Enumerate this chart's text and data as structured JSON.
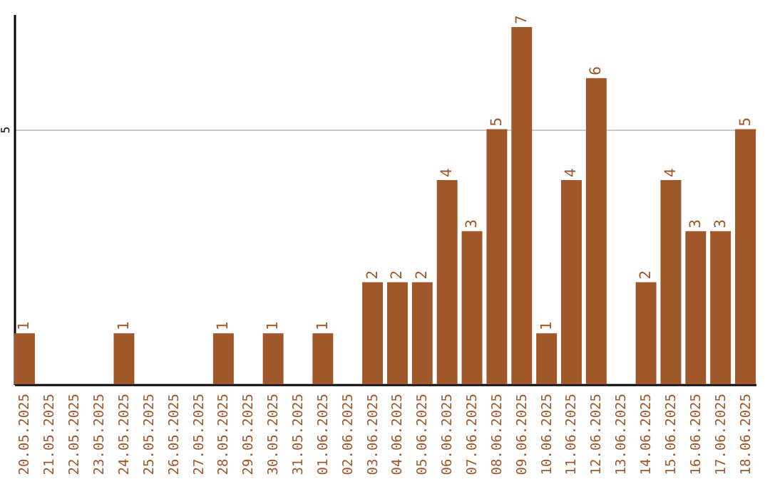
{
  "chart_data": {
    "type": "bar",
    "categories": [
      "20.05.2025",
      "21.05.2025",
      "22.05.2025",
      "23.05.2025",
      "24.05.2025",
      "25.05.2025",
      "26.05.2025",
      "27.05.2025",
      "28.05.2025",
      "29.05.2025",
      "30.05.2025",
      "31.05.2025",
      "01.06.2025",
      "02.06.2025",
      "03.06.2025",
      "04.06.2025",
      "05.06.2025",
      "06.06.2025",
      "07.06.2025",
      "08.06.2025",
      "09.06.2025",
      "10.06.2025",
      "11.06.2025",
      "12.06.2025",
      "13.06.2025",
      "14.06.2025",
      "15.06.2025",
      "16.06.2025",
      "17.06.2025",
      "18.06.2025"
    ],
    "values": [
      1,
      0,
      0,
      0,
      1,
      0,
      0,
      0,
      1,
      0,
      1,
      0,
      1,
      0,
      2,
      2,
      2,
      4,
      3,
      5,
      7,
      1,
      4,
      6,
      0,
      2,
      4,
      3,
      3,
      5
    ],
    "value_labels": [
      "1",
      null,
      null,
      null,
      "1",
      null,
      null,
      null,
      "1",
      null,
      "1",
      null,
      "1",
      null,
      "2",
      "2",
      "2",
      "4",
      "3",
      "5",
      "7",
      "1",
      "4",
      "6",
      null,
      "2",
      "4",
      "3",
      "3",
      "5"
    ],
    "color": "#a0572a",
    "ylim": [
      0,
      7.25
    ],
    "yticks": [
      5
    ],
    "grid": "y"
  }
}
